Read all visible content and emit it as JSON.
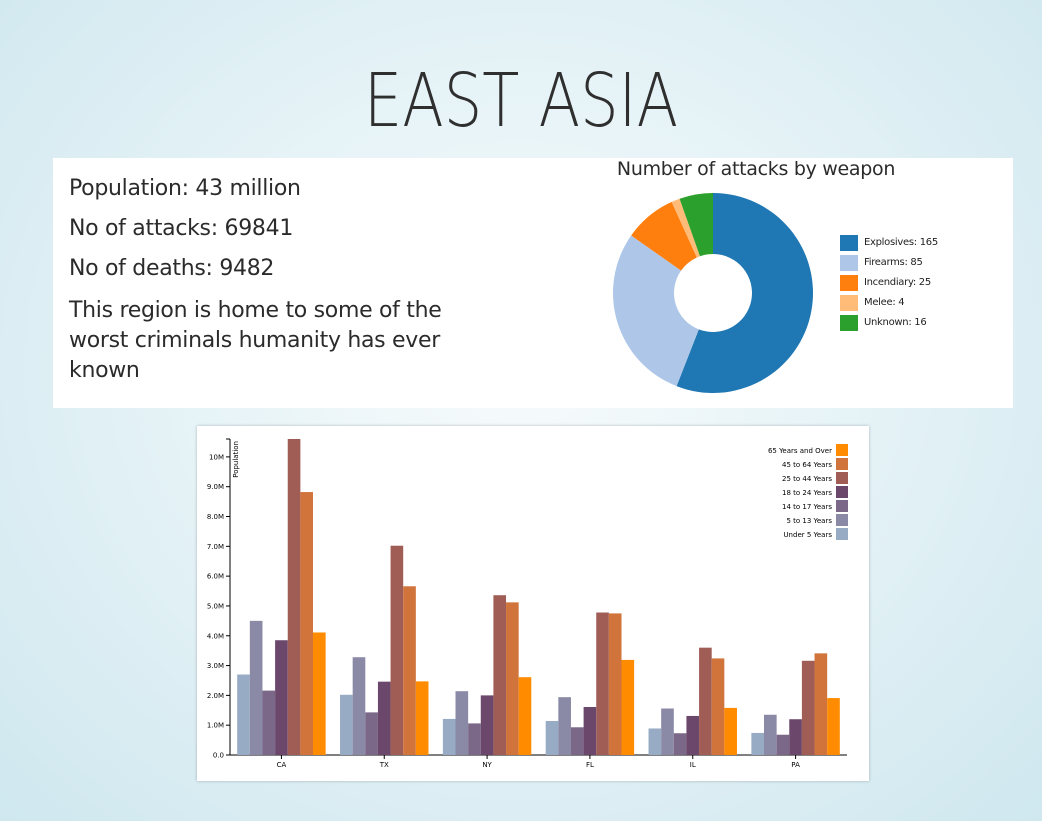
{
  "page": {
    "title": "EAST ASIA"
  },
  "info": {
    "population": "Population: 43 million",
    "attacks": "No of attacks: 69841",
    "deaths": "No of deaths: 9482",
    "description": "This region is home to some of the worst criminals humanity has ever known"
  },
  "colors": {
    "explosives": "#1f77b4",
    "firearms": "#aec7e8",
    "incendiary": "#ff7f0e",
    "melee": "#ffbb78",
    "unknown": "#2ca02c",
    "age": [
      "#98abc5",
      "#8a89a6",
      "#7b6888",
      "#6b486b",
      "#a05d56",
      "#d0743c",
      "#ff8c00"
    ]
  },
  "chart_data": [
    {
      "type": "pie",
      "title": "Number of attacks by weapon",
      "labels": [
        "Explosives",
        "Firearms",
        "Incendiary",
        "Melee",
        "Unknown"
      ],
      "values": [
        165,
        85,
        25,
        4,
        16
      ],
      "legend": [
        "Explosives: 165",
        "Firearms: 85",
        "Incendiary: 25",
        "Melee: 4",
        "Unknown: 16"
      ],
      "donut": true,
      "legend_position": "right"
    },
    {
      "type": "bar",
      "ylabel": "Population",
      "categories": [
        "CA",
        "TX",
        "NY",
        "FL",
        "IL",
        "PA"
      ],
      "ylim": [
        0,
        10600000
      ],
      "ticks": [
        "0.0",
        "1.0M",
        "2.0M",
        "3.0M",
        "4.0M",
        "5.0M",
        "6.0M",
        "7.0M",
        "8.0M",
        "9.0M",
        "10M"
      ],
      "legend_position": "top-right",
      "legend_order": [
        "65 Years and Over",
        "45 to 64 Years",
        "25 to 44 Years",
        "18 to 24 Years",
        "14 to 17 Years",
        "5 to 13 Years",
        "Under 5 Years"
      ],
      "series": [
        {
          "name": "Under 5 Years",
          "values": [
            2700000,
            2020000,
            1210000,
            1140000,
            890000,
            740000
          ]
        },
        {
          "name": "5 to 13 Years",
          "values": [
            4500000,
            3280000,
            2140000,
            1940000,
            1560000,
            1350000
          ]
        },
        {
          "name": "14 to 17 Years",
          "values": [
            2160000,
            1430000,
            1060000,
            930000,
            730000,
            680000
          ]
        },
        {
          "name": "18 to 24 Years",
          "values": [
            3850000,
            2460000,
            2000000,
            1610000,
            1310000,
            1200000
          ]
        },
        {
          "name": "25 to 44 Years",
          "values": [
            10600000,
            7020000,
            5360000,
            4780000,
            3600000,
            3160000
          ]
        },
        {
          "name": "45 to 64 Years",
          "values": [
            8820000,
            5660000,
            5120000,
            4750000,
            3240000,
            3410000
          ]
        },
        {
          "name": "65 Years and Over",
          "values": [
            4110000,
            2470000,
            2610000,
            3190000,
            1580000,
            1910000
          ]
        }
      ]
    }
  ]
}
